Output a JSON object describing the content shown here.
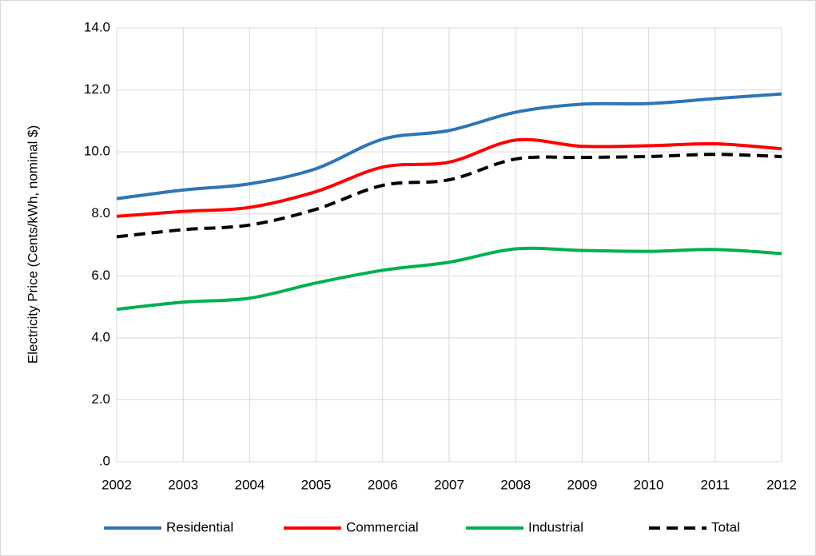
{
  "chart_data": {
    "type": "line",
    "ylabel": "Electricity Price (Cents/kWh, nominal $)",
    "x": [
      2002,
      2003,
      2004,
      2005,
      2006,
      2007,
      2008,
      2009,
      2010,
      2011,
      2012
    ],
    "xlim": [
      2002,
      2012
    ],
    "xticks": [
      2002,
      2003,
      2004,
      2005,
      2006,
      2007,
      2008,
      2009,
      2010,
      2011,
      2012
    ],
    "ylim": [
      0,
      14
    ],
    "yticks": [
      {
        "value": 0,
        "label": ".0"
      },
      {
        "value": 2,
        "label": "2.0"
      },
      {
        "value": 4,
        "label": "4.0"
      },
      {
        "value": 6,
        "label": "6.0"
      },
      {
        "value": 8,
        "label": "8.0"
      },
      {
        "value": 10,
        "label": "10.0"
      },
      {
        "value": 12,
        "label": "12.0"
      },
      {
        "value": 14,
        "label": "14.0"
      }
    ],
    "grid": true,
    "legend": "bottom",
    "series": [
      {
        "name": "Residential",
        "color": "#2e75b6",
        "values": [
          8.49,
          8.77,
          8.97,
          9.46,
          10.41,
          10.69,
          11.28,
          11.54,
          11.56,
          11.72,
          11.87
        ]
      },
      {
        "name": "Commercial",
        "color": "#ff0000",
        "values": [
          7.92,
          8.08,
          8.21,
          8.72,
          9.51,
          9.67,
          10.38,
          10.18,
          10.2,
          10.26,
          10.1
        ]
      },
      {
        "name": "Industrial",
        "color": "#00b050",
        "values": [
          4.92,
          5.15,
          5.28,
          5.77,
          6.18,
          6.44,
          6.87,
          6.82,
          6.79,
          6.85,
          6.72
        ]
      },
      {
        "name": "Total",
        "color": "#000000",
        "dashed": true,
        "values": [
          7.26,
          7.49,
          7.64,
          8.15,
          8.92,
          9.1,
          9.77,
          9.82,
          9.85,
          9.92,
          9.85
        ]
      }
    ]
  }
}
